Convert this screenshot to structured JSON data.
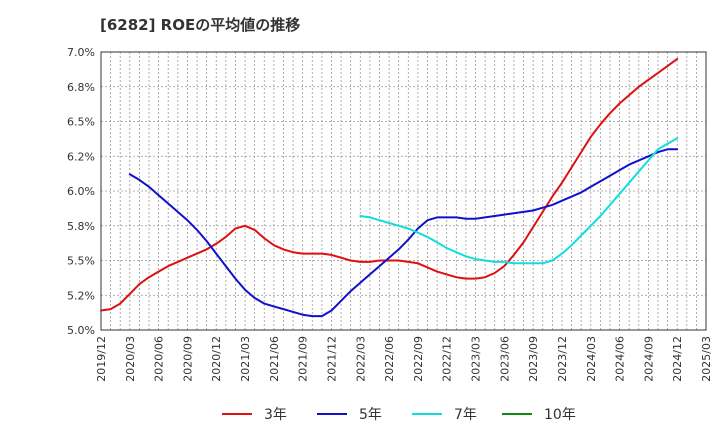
{
  "chart_data": {
    "type": "line",
    "title": "[6282]  ROEの平均値の推移",
    "xlabel": "",
    "ylabel": "",
    "ylim": [
      5.0,
      7.0
    ],
    "grid": true,
    "legend_position": "bottom",
    "y_ticks": [
      "5.0%",
      "5.2%",
      "5.5%",
      "5.8%",
      "6.0%",
      "6.2%",
      "6.5%",
      "6.8%",
      "7.0%"
    ],
    "y_tick_values": [
      5.0,
      5.25,
      5.5,
      5.75,
      6.0,
      6.25,
      6.5,
      6.75,
      7.0
    ],
    "x_ticks": [
      "2019/12",
      "2020/03",
      "2020/06",
      "2020/09",
      "2020/12",
      "2021/03",
      "2021/06",
      "2021/09",
      "2021/12",
      "2022/03",
      "2022/06",
      "2022/09",
      "2022/12",
      "2023/03",
      "2023/06",
      "2023/09",
      "2023/12",
      "2024/03",
      "2024/06",
      "2024/09",
      "2024/12",
      "2025/03"
    ],
    "x_range_months": [
      0,
      63
    ],
    "series": [
      {
        "name": "3年",
        "color": "#dd1111",
        "x_months": [
          0,
          1,
          2,
          3,
          4,
          5,
          6,
          7,
          8,
          9,
          10,
          11,
          12,
          13,
          14,
          15,
          16,
          17,
          18,
          19,
          20,
          21,
          22,
          23,
          24,
          25,
          26,
          27,
          28,
          29,
          30,
          31,
          32,
          33,
          34,
          35,
          36,
          37,
          38,
          39,
          40,
          41,
          42,
          43,
          44,
          45,
          46,
          47,
          48,
          49,
          50,
          51,
          52,
          53,
          54,
          55,
          56,
          57,
          58,
          59,
          60
        ],
        "values": [
          5.14,
          5.15,
          5.19,
          5.26,
          5.33,
          5.38,
          5.42,
          5.46,
          5.49,
          5.52,
          5.55,
          5.58,
          5.62,
          5.67,
          5.73,
          5.75,
          5.72,
          5.66,
          5.61,
          5.58,
          5.56,
          5.55,
          5.55,
          5.55,
          5.54,
          5.52,
          5.5,
          5.49,
          5.49,
          5.5,
          5.5,
          5.5,
          5.49,
          5.48,
          5.45,
          5.42,
          5.4,
          5.38,
          5.37,
          5.37,
          5.38,
          5.41,
          5.46,
          5.54,
          5.63,
          5.74,
          5.85,
          5.96,
          6.06,
          6.17,
          6.28,
          6.39,
          6.48,
          6.56,
          6.63,
          6.69,
          6.75,
          6.8,
          6.85,
          6.9,
          6.95
        ]
      },
      {
        "name": "5年",
        "color": "#1111cc",
        "x_months": [
          3,
          4,
          5,
          6,
          7,
          8,
          9,
          10,
          11,
          12,
          13,
          14,
          15,
          16,
          17,
          18,
          19,
          20,
          21,
          22,
          23,
          24,
          25,
          26,
          27,
          28,
          29,
          30,
          31,
          32,
          33,
          34,
          35,
          36,
          37,
          38,
          39,
          40,
          41,
          42,
          43,
          44,
          45,
          46,
          47,
          48,
          49,
          50,
          51,
          52,
          53,
          54,
          55,
          56,
          57,
          58,
          59,
          60
        ],
        "values": [
          6.12,
          6.08,
          6.03,
          5.97,
          5.91,
          5.85,
          5.79,
          5.72,
          5.64,
          5.55,
          5.46,
          5.37,
          5.29,
          5.23,
          5.19,
          5.17,
          5.15,
          5.13,
          5.11,
          5.1,
          5.1,
          5.14,
          5.21,
          5.28,
          5.34,
          5.4,
          5.46,
          5.52,
          5.58,
          5.65,
          5.73,
          5.79,
          5.81,
          5.81,
          5.81,
          5.8,
          5.8,
          5.81,
          5.82,
          5.83,
          5.84,
          5.85,
          5.86,
          5.88,
          5.9,
          5.93,
          5.96,
          5.99,
          6.03,
          6.07,
          6.11,
          6.15,
          6.19,
          6.22,
          6.25,
          6.28,
          6.3,
          6.3
        ]
      },
      {
        "name": "7年",
        "color": "#11dddd",
        "x_months": [
          27,
          28,
          29,
          30,
          31,
          32,
          33,
          34,
          35,
          36,
          37,
          38,
          39,
          40,
          41,
          42,
          43,
          44,
          45,
          46,
          47,
          48,
          49,
          50,
          51,
          52,
          53,
          54,
          55,
          56,
          57,
          58,
          59,
          60
        ],
        "values": [
          5.82,
          5.81,
          5.79,
          5.77,
          5.75,
          5.73,
          5.7,
          5.67,
          5.63,
          5.59,
          5.56,
          5.53,
          5.51,
          5.5,
          5.49,
          5.49,
          5.48,
          5.48,
          5.48,
          5.48,
          5.5,
          5.55,
          5.61,
          5.68,
          5.75,
          5.82,
          5.9,
          5.98,
          6.06,
          6.14,
          6.22,
          6.3,
          6.34,
          6.38
        ]
      },
      {
        "name": "10年",
        "color": "#118811",
        "x_months": [],
        "values": []
      }
    ]
  }
}
